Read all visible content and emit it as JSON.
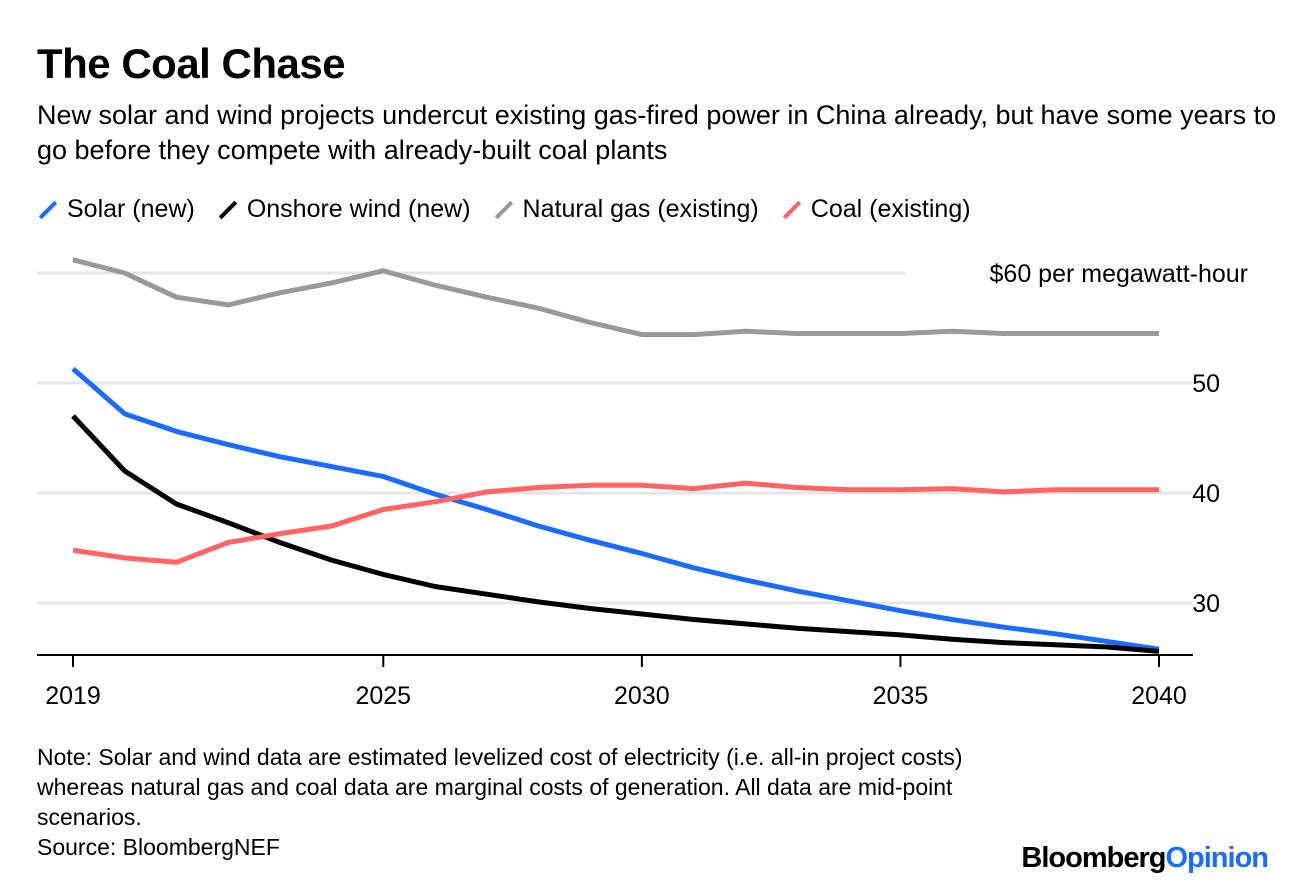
{
  "title": "The Coal Chase",
  "subtitle": "New solar and wind projects undercut existing gas-fired power in China already, but have some years to go before they compete with already-built coal plants",
  "note": "Note: Solar and wind data are estimated levelized cost of electricity (i.e. all-in project costs) whereas natural gas and coal data are marginal costs of generation. All data are mid-point scenarios.",
  "source": "Source: BloombergNEF",
  "logo": {
    "brand": "Bloomberg",
    "suffix": "Opinion"
  },
  "chart_data": {
    "type": "line",
    "title": "The Coal Chase",
    "ylabel": "$60 per megawatt-hour",
    "ylim": [
      25.2,
      62
    ],
    "yticks": [
      30,
      40,
      50,
      60
    ],
    "ytick_labels": [
      "30",
      "40",
      "50",
      "$60 per megawatt-hour"
    ],
    "xticks": [
      2019,
      2025,
      2030,
      2035,
      2040
    ],
    "xtick_labels": [
      "2019",
      "2025",
      "2030",
      "2035",
      "2040"
    ],
    "grid": true,
    "legend": "top",
    "x": [
      2019,
      2020,
      2021,
      2022,
      2023,
      2024,
      2025,
      2026,
      2027,
      2028,
      2029,
      2030,
      2031,
      2032,
      2033,
      2034,
      2035,
      2036,
      2037,
      2038,
      2039,
      2040
    ],
    "series": [
      {
        "name": "Solar (new)",
        "color": "#1a6cff",
        "values": [
          51.3,
          47.2,
          45.6,
          44.4,
          43.3,
          42.4,
          41.5,
          39.9,
          38.5,
          37.0,
          35.7,
          34.5,
          33.2,
          32.1,
          31.1,
          30.2,
          29.3,
          28.5,
          27.8,
          27.2,
          26.5,
          25.8
        ]
      },
      {
        "name": "Onshore wind (new)",
        "color": "#000000",
        "values": [
          47.0,
          42.0,
          39.0,
          37.3,
          35.5,
          33.9,
          32.6,
          31.5,
          30.8,
          30.1,
          29.5,
          29.0,
          28.5,
          28.1,
          27.7,
          27.4,
          27.1,
          26.7,
          26.4,
          26.2,
          26.0,
          25.6
        ]
      },
      {
        "name": "Natural gas (existing)",
        "color": "#999999",
        "values": [
          61.2,
          60.0,
          57.8,
          57.1,
          58.2,
          59.1,
          60.2,
          58.9,
          57.8,
          56.8,
          55.5,
          54.4,
          54.4,
          54.7,
          54.5,
          54.5,
          54.5,
          54.7,
          54.5,
          54.5,
          54.5,
          54.5
        ]
      },
      {
        "name": "Coal (existing)",
        "color": "#ff6363",
        "values": [
          34.8,
          34.1,
          33.7,
          35.5,
          36.3,
          37.0,
          38.5,
          39.2,
          40.1,
          40.5,
          40.7,
          40.7,
          40.4,
          40.9,
          40.5,
          40.3,
          40.3,
          40.4,
          40.1,
          40.3,
          40.3,
          40.3
        ]
      }
    ]
  }
}
